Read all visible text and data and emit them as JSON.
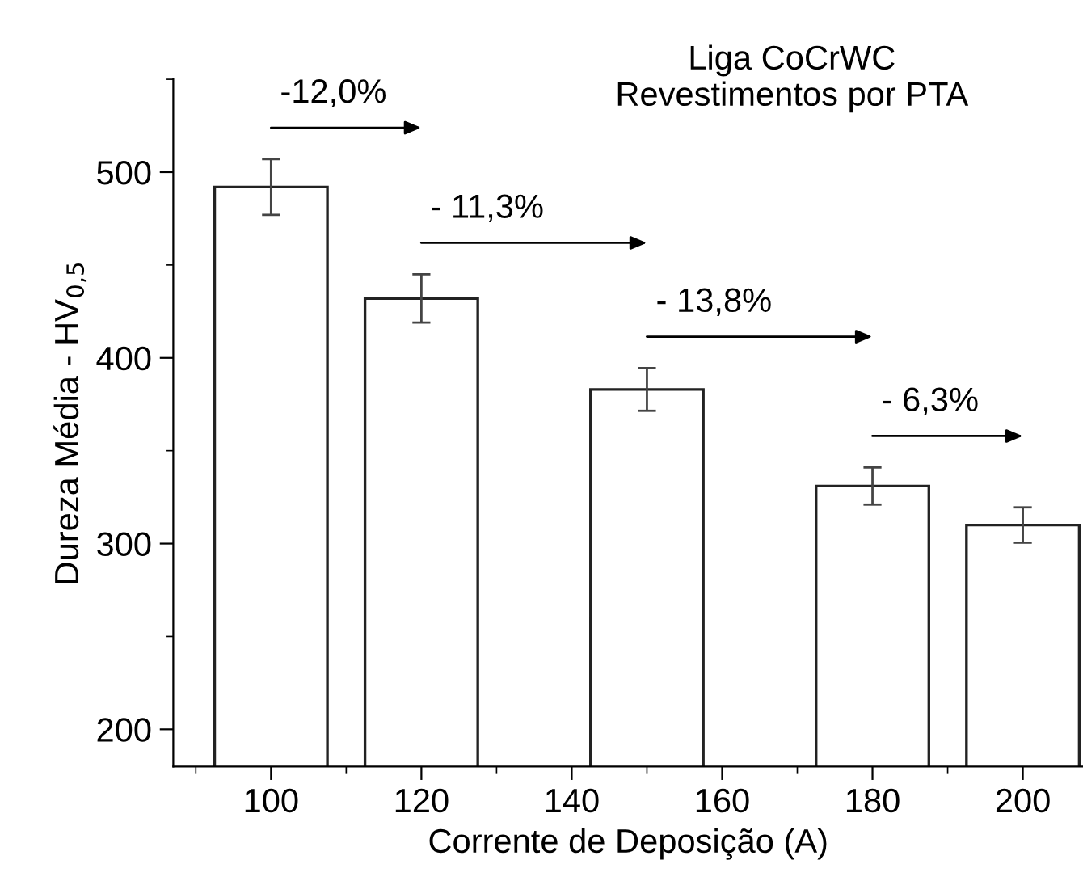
{
  "chart_data": {
    "type": "bar",
    "title": "Liga CoCrWC\nRevestimentos por PTA",
    "xlabel": "Corrente de Deposição (A)",
    "ylabel": "Dureza Média - HV$_{0,5}$",
    "x": [
      100,
      120,
      150,
      180,
      200
    ],
    "values": [
      492,
      432,
      383,
      331,
      310
    ],
    "errors": [
      15,
      13,
      11.5,
      10,
      9.5
    ],
    "color": "#ffffff",
    "xlim": [
      87,
      208
    ],
    "xticks": [
      100,
      120,
      140,
      160,
      180,
      200
    ],
    "ylim": [
      180,
      550
    ],
    "yticks": [
      200,
      300,
      400,
      500
    ],
    "annotations": [
      "-12,0%",
      "- 11,3%",
      "- 13,8%",
      "- 6,3%"
    ],
    "grid": false,
    "legend": false
  }
}
